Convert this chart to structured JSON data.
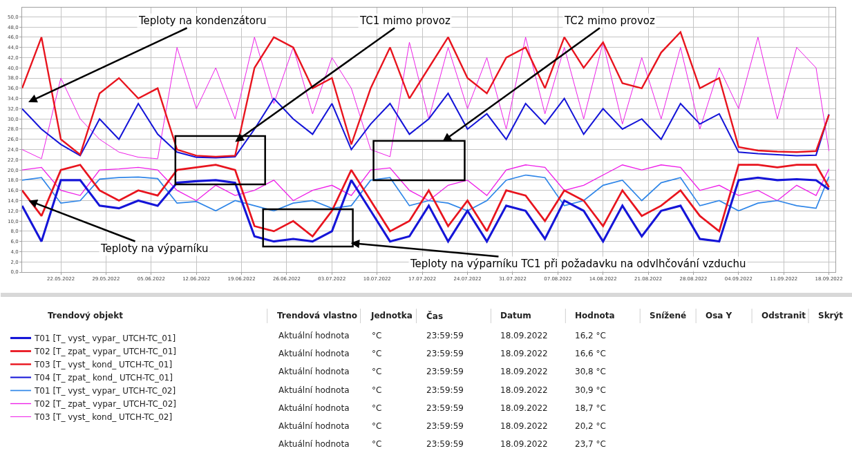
{
  "chart_data": {
    "type": "line",
    "x": [
      "2022-05-16",
      "2022-05-19",
      "2022-05-22",
      "2022-05-25",
      "2022-05-28",
      "2022-05-31",
      "2022-06-03",
      "2022-06-06",
      "2022-06-09",
      "2022-06-12",
      "2022-06-15",
      "2022-06-18",
      "2022-06-21",
      "2022-06-24",
      "2022-06-27",
      "2022-06-30",
      "2022-07-03",
      "2022-07-06",
      "2022-07-09",
      "2022-07-12",
      "2022-07-15",
      "2022-07-18",
      "2022-07-21",
      "2022-07-24",
      "2022-07-27",
      "2022-07-30",
      "2022-08-02",
      "2022-08-05",
      "2022-08-08",
      "2022-08-11",
      "2022-08-14",
      "2022-08-17",
      "2022-08-20",
      "2022-08-23",
      "2022-08-26",
      "2022-08-29",
      "2022-09-01",
      "2022-09-04",
      "2022-09-07",
      "2022-09-10",
      "2022-09-13",
      "2022-09-16",
      "2022-09-18"
    ],
    "series": [
      {
        "name": "T01 [T_ vyst_ vypar_ UTCH-TC_01]",
        "color": "#1515d8",
        "values": [
          13,
          6,
          18,
          18,
          13,
          12.5,
          14,
          13,
          17.5,
          17.8,
          18,
          17.5,
          7,
          6,
          6.5,
          6,
          8,
          18,
          12,
          6,
          7,
          13,
          6,
          12,
          6,
          13,
          12,
          6.5,
          14,
          12,
          6,
          13,
          7,
          12,
          13,
          6.5,
          6,
          18,
          18.5,
          18,
          18.2,
          18,
          16.2
        ]
      },
      {
        "name": "T02 [T_ zpat_ vypar_ UTCH-TC_01]",
        "color": "#e8141e",
        "values": [
          16,
          11,
          20,
          21,
          16,
          14,
          16,
          15,
          20,
          20.5,
          21,
          20,
          9,
          8,
          10,
          7,
          12,
          20,
          14,
          8,
          10,
          16,
          9,
          14,
          8,
          16,
          15,
          10,
          16,
          14,
          9,
          16,
          11,
          13,
          16,
          11,
          8,
          21,
          21,
          20.5,
          21,
          21,
          16.6
        ]
      },
      {
        "name": "T03 [T_ vyst_ kond_ UTCH-TC_01]",
        "color": "#e8141e",
        "values": [
          36,
          46,
          26,
          23,
          35,
          38,
          34,
          36,
          24,
          22.8,
          22.6,
          22.8,
          40,
          46,
          44,
          36,
          38,
          25,
          36,
          44,
          34,
          40,
          46,
          38,
          35,
          42,
          44,
          36,
          46,
          40,
          45,
          37,
          36,
          43,
          47,
          36,
          38,
          24.5,
          23.8,
          23.6,
          23.5,
          23.7,
          30.8
        ]
      },
      {
        "name": "T04 [T_ zpat_ kond_ UTCH-TC_01]",
        "color": "#1515d8",
        "values": [
          32,
          28,
          25,
          22.8,
          30,
          26,
          33,
          27,
          23.5,
          22.5,
          22.4,
          22.6,
          28,
          34,
          30,
          27,
          33,
          24,
          29,
          33,
          27,
          30,
          35,
          28,
          31,
          26,
          33,
          29,
          34,
          27,
          32,
          28,
          30,
          26,
          33,
          29,
          31,
          23.5,
          23.2,
          23,
          22.8,
          22.9,
          30.9
        ]
      },
      {
        "name": "T01 [T_ vyst_ vypar_ UTCH-TC_02]",
        "color": "#2f86e8",
        "values": [
          18,
          18.5,
          13.5,
          14,
          18.2,
          18.5,
          18.6,
          18.3,
          13.5,
          13.8,
          12,
          14,
          13,
          12,
          13.5,
          14,
          12.5,
          13,
          18,
          18.5,
          13,
          14,
          13.5,
          12,
          14,
          18,
          19,
          18.5,
          13,
          14,
          17,
          18,
          14,
          17.5,
          18.5,
          13,
          14,
          12,
          13.5,
          14,
          13,
          12.5,
          18.7
        ]
      },
      {
        "name": "T02 [T_ zpat_ vypar_ UTCH-TC_02]",
        "color": "#ee1ee8",
        "values": [
          20,
          20.5,
          16,
          15,
          20,
          20.2,
          20.5,
          20,
          16,
          14,
          17,
          15,
          16,
          18,
          14,
          16,
          17,
          15,
          20,
          20.4,
          16,
          14,
          17,
          18,
          15,
          20,
          21,
          20.5,
          16,
          17,
          19,
          21,
          20,
          21,
          20.5,
          16,
          17,
          15,
          16,
          14,
          17,
          15,
          20.2
        ]
      },
      {
        "name": "T03 [T_ vyst_ kond_ UTCH-TC_02]",
        "color": "#ee1ee8",
        "values": [
          24,
          22.2,
          38,
          30,
          26,
          23.5,
          22.5,
          22.2,
          44,
          32,
          40,
          30,
          46,
          33,
          44,
          31,
          42,
          36,
          24,
          22.6,
          45,
          30,
          44,
          32,
          42,
          28,
          46,
          31,
          44,
          30,
          45,
          29,
          42,
          30,
          44,
          28,
          40,
          32,
          46,
          30,
          44,
          40,
          23.7
        ]
      }
    ],
    "xlim": [
      "2022-05-16",
      "2022-09-19"
    ],
    "xticks": [
      {
        "value": "2022-05-22",
        "label": "22.05.2022"
      },
      {
        "value": "2022-05-29",
        "label": "29.05.2022"
      },
      {
        "value": "2022-06-05",
        "label": "05.06.2022"
      },
      {
        "value": "2022-06-12",
        "label": "12.06.2022"
      },
      {
        "value": "2022-06-19",
        "label": "19.06.2022"
      },
      {
        "value": "2022-06-26",
        "label": "26.06.2022"
      },
      {
        "value": "2022-07-03",
        "label": "03.07.2022"
      },
      {
        "value": "2022-07-10",
        "label": "10.07.2022"
      },
      {
        "value": "2022-07-17",
        "label": "17.07.2022"
      },
      {
        "value": "2022-07-24",
        "label": "24.07.2022"
      },
      {
        "value": "2022-07-31",
        "label": "31.07.2022"
      },
      {
        "value": "2022-08-07",
        "label": "07.08.2022"
      },
      {
        "value": "2022-08-14",
        "label": "14.08.2022"
      },
      {
        "value": "2022-08-21",
        "label": "21.08.2022"
      },
      {
        "value": "2022-08-28",
        "label": "28.08.2022"
      },
      {
        "value": "2022-09-04",
        "label": "04.09.2022"
      },
      {
        "value": "2022-09-11",
        "label": "11.09.2022"
      },
      {
        "value": "2022-09-18",
        "label": "18.09.2022"
      }
    ],
    "ylim": [
      0,
      51.8
    ],
    "yticks": [
      {
        "value": 0,
        "label": "0,0"
      },
      {
        "value": 2,
        "label": "2,0"
      },
      {
        "value": 4,
        "label": "4,0"
      },
      {
        "value": 6,
        "label": "6,0"
      },
      {
        "value": 8,
        "label": "8,0"
      },
      {
        "value": 10,
        "label": "10,0"
      },
      {
        "value": 12,
        "label": "12,0"
      },
      {
        "value": 14,
        "label": "14,0"
      },
      {
        "value": 16,
        "label": "16,0"
      },
      {
        "value": 18,
        "label": "18,0"
      },
      {
        "value": 20,
        "label": "20,0"
      },
      {
        "value": 22,
        "label": "22,0"
      },
      {
        "value": 24,
        "label": "24,0"
      },
      {
        "value": 26,
        "label": "26,0"
      },
      {
        "value": 28,
        "label": "28,0"
      },
      {
        "value": 30,
        "label": "30,0"
      },
      {
        "value": 32,
        "label": "32,0"
      },
      {
        "value": 34,
        "label": "34,0"
      },
      {
        "value": 36,
        "label": "36,0"
      },
      {
        "value": 38,
        "label": "38,0"
      },
      {
        "value": 40,
        "label": "40,0"
      },
      {
        "value": 42,
        "label": "42,0"
      },
      {
        "value": 44,
        "label": "44,0"
      },
      {
        "value": 46,
        "label": "46,0"
      },
      {
        "value": 48,
        "label": "48,0"
      },
      {
        "value": 50,
        "label": "50,0"
      }
    ],
    "grid": true,
    "legend": "bottom",
    "marker": "none",
    "line_style": "solid",
    "annotations": [
      "Teploty na kondenzátoru",
      {
        "text": "TC1 mimo provoz",
        "x": "2022-06-18",
        "y": 25.5
      },
      "TC2 mimo provoz",
      {
        "text": "Teploty na výparníku",
        "x": "2022-05-17",
        "y": 14
      },
      "Teploty na výparníku TC1 při požadavku na odvlhčování vzduchu",
      "Trendový objekt",
      "Trendová vlastno",
      "Jednotka",
      "Čas",
      "Datum",
      "Hodnota",
      "Snížené",
      "Osa Y",
      "Odstranit",
      "Skrýt",
      "Aktuální hodnota",
      "°C",
      "23:59:59",
      "18.09.2022",
      "16,2 °C",
      "Aktuální hodnota",
      "°C",
      "23:59:59",
      "18.09.2022",
      "16,6 °C",
      "Aktuální hodnota",
      "°C",
      "23:59:59",
      "18.09.2022",
      "30,8 °C",
      "Aktuální hodnota",
      "°C",
      "23:59:59",
      "18.09.2022",
      "30,9 °C",
      "Aktuální hodnota",
      "°C",
      "23:59:59",
      "18.09.2022",
      "18,7 °C",
      "Aktuální hodnota",
      "°C",
      "23:59:59",
      "18.09.2022",
      "20,2 °C",
      "Aktuální hodnota",
      "°C",
      "23:59:59",
      "18.09.2022",
      "23,7 °C"
    ]
  }
}
